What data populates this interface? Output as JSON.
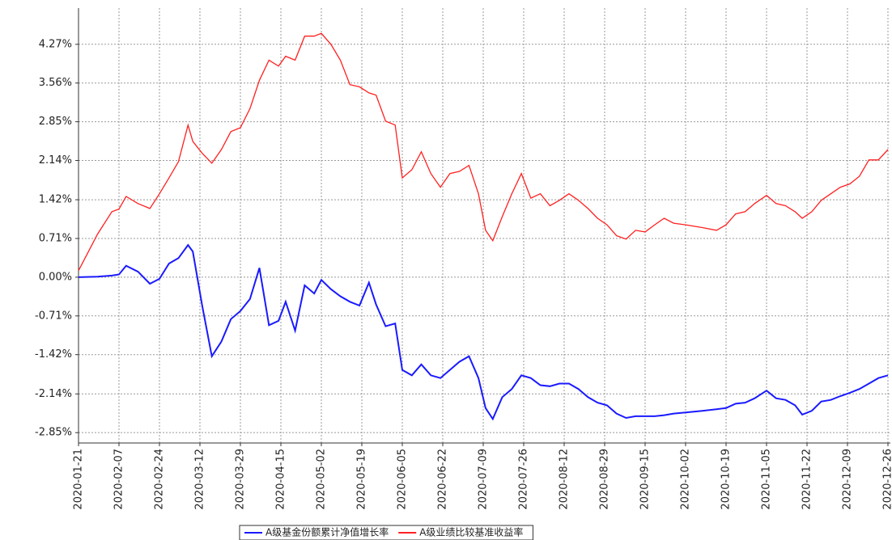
{
  "chart_data": {
    "type": "line",
    "x": [
      "2020-01-21",
      "2020-01-29",
      "2020-02-04",
      "2020-02-07",
      "2020-02-10",
      "2020-02-15",
      "2020-02-20",
      "2020-02-24",
      "2020-02-28",
      "2020-03-03",
      "2020-03-07",
      "2020-03-09",
      "2020-03-13",
      "2020-03-17",
      "2020-03-21",
      "2020-03-25",
      "2020-03-29",
      "2020-04-02",
      "2020-04-06",
      "2020-04-10",
      "2020-04-14",
      "2020-04-17",
      "2020-04-21",
      "2020-04-25",
      "2020-04-29",
      "2020-05-02",
      "2020-05-06",
      "2020-05-10",
      "2020-05-14",
      "2020-05-18",
      "2020-05-22",
      "2020-05-25",
      "2020-05-29",
      "2020-06-02",
      "2020-06-05",
      "2020-06-09",
      "2020-06-13",
      "2020-06-17",
      "2020-06-21",
      "2020-06-25",
      "2020-06-29",
      "2020-07-03",
      "2020-07-07",
      "2020-07-10",
      "2020-07-13",
      "2020-07-17",
      "2020-07-21",
      "2020-07-25",
      "2020-07-29",
      "2020-08-02",
      "2020-08-06",
      "2020-08-10",
      "2020-08-14",
      "2020-08-18",
      "2020-08-22",
      "2020-08-26",
      "2020-08-30",
      "2020-09-03",
      "2020-09-07",
      "2020-09-11",
      "2020-09-15",
      "2020-09-19",
      "2020-09-23",
      "2020-09-27",
      "2020-10-02",
      "2020-10-09",
      "2020-10-15",
      "2020-10-19",
      "2020-10-23",
      "2020-10-27",
      "2020-10-31",
      "2020-11-05",
      "2020-11-09",
      "2020-11-13",
      "2020-11-17",
      "2020-11-20",
      "2020-11-24",
      "2020-11-28",
      "2020-12-02",
      "2020-12-06",
      "2020-12-10",
      "2020-12-14",
      "2020-12-18",
      "2020-12-22",
      "2020-12-26"
    ],
    "series": [
      {
        "name": "A级基金份额累计净值增长率",
        "color": "#1a1aff",
        "values": [
          0.0,
          0.01,
          0.03,
          0.05,
          0.21,
          0.1,
          -0.12,
          -0.03,
          0.25,
          0.35,
          0.59,
          0.47,
          -0.53,
          -1.45,
          -1.18,
          -0.77,
          -0.62,
          -0.4,
          0.17,
          -0.88,
          -0.8,
          -0.45,
          -0.98,
          -0.15,
          -0.3,
          -0.05,
          -0.22,
          -0.35,
          -0.45,
          -0.52,
          -0.1,
          -0.5,
          -0.9,
          -0.85,
          -1.7,
          -1.8,
          -1.6,
          -1.8,
          -1.85,
          -1.7,
          -1.55,
          -1.45,
          -1.85,
          -2.4,
          -2.6,
          -2.2,
          -2.05,
          -1.8,
          -1.85,
          -1.98,
          -2.0,
          -1.95,
          -1.95,
          -2.05,
          -2.2,
          -2.3,
          -2.35,
          -2.5,
          -2.58,
          -2.55,
          -2.55,
          -2.55,
          -2.53,
          -2.5,
          -2.48,
          -2.45,
          -2.42,
          -2.4,
          -2.32,
          -2.3,
          -2.22,
          -2.08,
          -2.22,
          -2.25,
          -2.35,
          -2.52,
          -2.45,
          -2.28,
          -2.25,
          -2.18,
          -2.12,
          -2.05,
          -1.95,
          -1.85,
          -1.8
        ]
      },
      {
        "name": "A级业绩比较基准收益率",
        "color": "#ff2020",
        "values": [
          0.12,
          0.79,
          1.2,
          1.25,
          1.48,
          1.35,
          1.26,
          1.53,
          1.82,
          2.12,
          2.79,
          2.49,
          2.27,
          2.09,
          2.34,
          2.67,
          2.74,
          3.09,
          3.61,
          3.98,
          3.87,
          4.05,
          3.98,
          4.42,
          4.42,
          4.47,
          4.27,
          3.98,
          3.53,
          3.49,
          3.38,
          3.34,
          2.86,
          2.79,
          1.82,
          1.97,
          2.3,
          1.9,
          1.65,
          1.9,
          1.94,
          2.05,
          1.53,
          0.86,
          0.67,
          1.11,
          1.53,
          1.9,
          1.45,
          1.53,
          1.31,
          1.41,
          1.53,
          1.41,
          1.26,
          1.08,
          0.96,
          0.76,
          0.7,
          0.86,
          0.83,
          0.96,
          1.08,
          0.99,
          0.96,
          0.91,
          0.86,
          0.96,
          1.16,
          1.2,
          1.35,
          1.5,
          1.35,
          1.31,
          1.2,
          1.08,
          1.2,
          1.41,
          1.53,
          1.65,
          1.71,
          1.85,
          2.15,
          2.15,
          2.34
        ]
      }
    ],
    "xlim": [
      "2020-01-21",
      "2020-12-26"
    ],
    "xticks": [
      "2020-01-21",
      "2020-02-07",
      "2020-02-24",
      "2020-03-12",
      "2020-03-29",
      "2020-04-15",
      "2020-05-02",
      "2020-05-19",
      "2020-06-05",
      "2020-06-22",
      "2020-07-09",
      "2020-07-26",
      "2020-08-12",
      "2020-08-29",
      "2020-09-15",
      "2020-10-02",
      "2020-10-19",
      "2020-11-05",
      "2020-11-22",
      "2020-12-09",
      "2020-12-26"
    ],
    "ylim": [
      -3.04,
      4.86
    ],
    "yticks": [
      {
        "value": -2.85,
        "label": "-2.85%"
      },
      {
        "value": -2.14,
        "label": "-2.14%"
      },
      {
        "value": -1.42,
        "label": "-1.42%"
      },
      {
        "value": -0.71,
        "label": "-0.71%"
      },
      {
        "value": 0,
        "label": "0.00%"
      },
      {
        "value": 0.71,
        "label": "0.71%"
      },
      {
        "value": 1.42,
        "label": "1.42%"
      },
      {
        "value": 2.14,
        "label": "2.14%"
      },
      {
        "value": 2.85,
        "label": "2.85%"
      },
      {
        "value": 3.56,
        "label": "3.56%"
      },
      {
        "value": 4.27,
        "label": "4.27%"
      }
    ],
    "grid": true
  }
}
